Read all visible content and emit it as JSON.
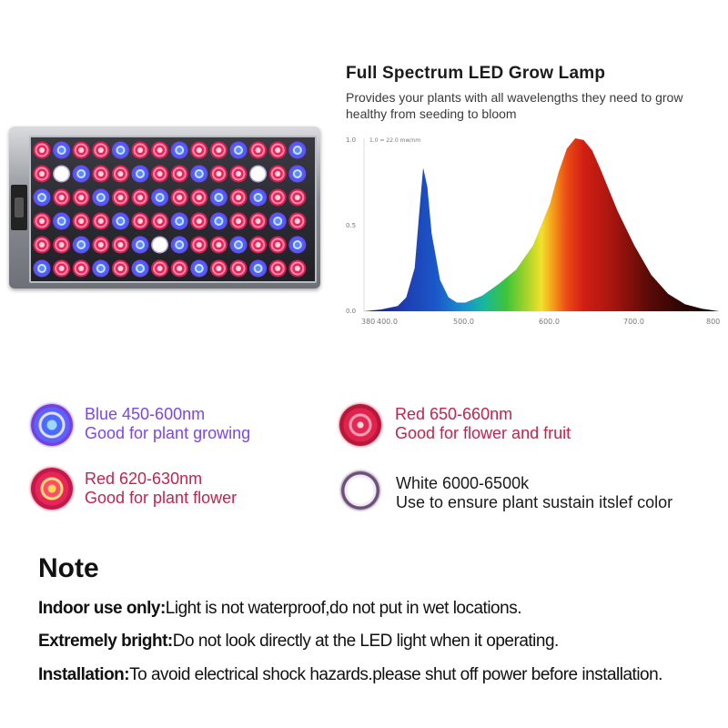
{
  "spectrum": {
    "title": "Full Spectrum LED Grow Lamp",
    "subtitle": "Provides your plants with all wavelengths they need to grow healthy from seeding to bloom",
    "y_ticks": [
      "1.0",
      "0.5",
      "0.0"
    ],
    "y_note": "1.0 = 22.0 mw/nm",
    "x_ticks": [
      "380",
      "400.0",
      "500.0",
      "600.0",
      "700.0",
      "800"
    ]
  },
  "chart_data": {
    "type": "area",
    "title": "Full Spectrum LED Grow Lamp",
    "xlabel": "",
    "ylabel": "",
    "xlim": [
      380,
      800
    ],
    "ylim": [
      0,
      1.0
    ],
    "x": [
      380,
      400,
      420,
      430,
      440,
      445,
      450,
      455,
      460,
      470,
      480,
      490,
      500,
      520,
      540,
      560,
      580,
      600,
      610,
      620,
      630,
      640,
      650,
      660,
      670,
      680,
      700,
      720,
      740,
      760,
      780,
      800
    ],
    "values": [
      0.0,
      0.01,
      0.03,
      0.08,
      0.25,
      0.55,
      0.83,
      0.72,
      0.45,
      0.18,
      0.08,
      0.05,
      0.05,
      0.09,
      0.16,
      0.24,
      0.38,
      0.62,
      0.8,
      0.94,
      1.0,
      0.99,
      0.93,
      0.82,
      0.7,
      0.58,
      0.38,
      0.21,
      0.1,
      0.04,
      0.015,
      0.0
    ]
  },
  "legend": [
    {
      "name": "Blue 450-600nm",
      "desc": "Good for plant growing"
    },
    {
      "name": "Red 650-660nm",
      "desc": "Good for flower and fruit"
    },
    {
      "name": "Red 620-630nm",
      "desc": "Good for plant flower"
    },
    {
      "name": "White 6000-6500k",
      "desc": "Use to ensure plant sustain itslef color"
    }
  ],
  "note": {
    "title": "Note",
    "lines": [
      {
        "label": "Indoor use only:",
        "text": "Light is not waterproof,do not put in wet locations."
      },
      {
        "label": "Extremely bright:",
        "text": "Do not look directly at the LED light when it operating."
      },
      {
        "label": "Installation:",
        "text": "To avoid electrical shock hazards.please shut off power before installation."
      }
    ]
  },
  "colors": {
    "blue_led": "#5a6cff",
    "red_led": "#e0285a",
    "deep_red_led": "#d81e3c",
    "white_led": "#f4f0f8"
  }
}
